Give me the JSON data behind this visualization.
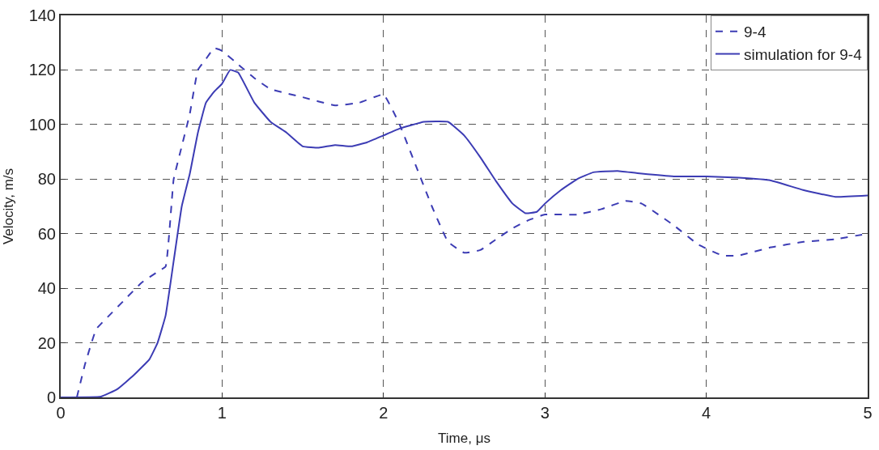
{
  "chart_data": {
    "type": "line",
    "xlabel": "Time, μs",
    "ylabel": "Velocity, m/s",
    "xlim": [
      0,
      5
    ],
    "xticks": [
      0,
      1,
      2,
      3,
      4,
      5
    ],
    "ylim": [
      0,
      140
    ],
    "yticks": [
      0,
      20,
      40,
      60,
      80,
      100,
      120,
      140
    ],
    "grid": true,
    "legend": "top right",
    "marker": "none",
    "series": [
      {
        "name": "9-4",
        "color": "#3c3cb4",
        "line_style": "dashed",
        "x": [
          0.1,
          0.15,
          0.22,
          0.3,
          0.4,
          0.5,
          0.6,
          0.65,
          0.7,
          0.75,
          0.8,
          0.85,
          0.9,
          0.95,
          1.0,
          1.1,
          1.2,
          1.3,
          1.5,
          1.7,
          1.85,
          2.0,
          2.1,
          2.2,
          2.3,
          2.4,
          2.5,
          2.6,
          2.7,
          2.8,
          2.9,
          3.0,
          3.2,
          3.35,
          3.5,
          3.6,
          3.8,
          3.95,
          4.1,
          4.2,
          4.4,
          4.6,
          4.8,
          5.0
        ],
        "values": [
          0,
          12,
          25,
          30,
          36,
          42,
          46,
          48,
          80,
          92,
          104,
          120,
          124,
          128,
          127,
          122,
          117,
          113,
          110,
          107,
          108,
          111,
          100,
          85,
          70,
          57,
          53,
          54,
          58,
          62,
          65,
          67,
          67,
          69,
          72,
          71,
          63,
          56,
          52,
          52,
          55,
          57,
          58,
          60
        ]
      },
      {
        "name": "simulation for 9-4",
        "color": "#3c3cb4",
        "line_style": "solid",
        "x": [
          0,
          0.25,
          0.35,
          0.45,
          0.55,
          0.6,
          0.65,
          0.7,
          0.75,
          0.8,
          0.85,
          0.9,
          0.95,
          1.0,
          1.05,
          1.1,
          1.2,
          1.3,
          1.4,
          1.5,
          1.6,
          1.7,
          1.8,
          1.9,
          2.0,
          2.1,
          2.25,
          2.4,
          2.5,
          2.6,
          2.7,
          2.8,
          2.88,
          2.95,
          3.0,
          3.1,
          3.2,
          3.3,
          3.45,
          3.6,
          3.8,
          4.0,
          4.2,
          4.4,
          4.6,
          4.8,
          5.0
        ],
        "values": [
          0,
          0.3,
          3,
          8,
          14,
          20,
          30,
          50,
          70,
          82,
          97,
          108,
          112,
          115,
          120,
          119,
          108,
          101,
          97,
          92,
          91.5,
          92.5,
          92,
          93.5,
          96,
          98.5,
          101,
          101,
          96,
          88,
          79,
          71,
          67.5,
          68,
          71,
          76,
          80,
          82.5,
          83,
          82,
          81,
          81,
          80.5,
          79.5,
          76,
          73.5,
          74
        ]
      }
    ]
  }
}
